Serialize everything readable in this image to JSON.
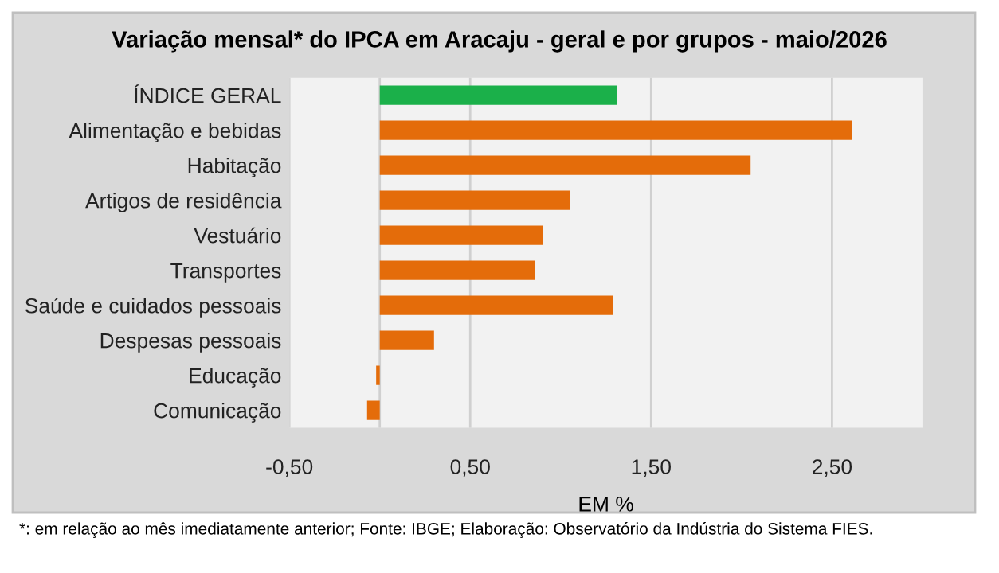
{
  "chart_data": {
    "type": "bar",
    "orientation": "horizontal",
    "title": "Variação mensal* do IPCA em Aracaju - geral e por grupos - maio/2026",
    "xlabel": "EM %",
    "categories": [
      "ÍNDICE GERAL",
      "Alimentação e bebidas",
      "Habitação",
      "Artigos de residência",
      "Vestuário",
      "Transportes",
      "Saúde e cuidados pessoais",
      "Despesas pessoais",
      "Educação",
      "Comunicação"
    ],
    "values": [
      1.31,
      2.61,
      2.05,
      1.05,
      0.9,
      0.86,
      1.29,
      0.3,
      -0.02,
      -0.07
    ],
    "colors": [
      "#1bb04a",
      "#e46c0a",
      "#e46c0a",
      "#e46c0a",
      "#e46c0a",
      "#e46c0a",
      "#e46c0a",
      "#e46c0a",
      "#e46c0a",
      "#e46c0a"
    ],
    "xlim": [
      -0.5,
      3.0
    ],
    "xticks": [
      {
        "value": -0.5,
        "label": "-0,50"
      },
      {
        "value": 0.5,
        "label": "0,50"
      },
      {
        "value": 1.5,
        "label": "1,50"
      },
      {
        "value": 2.5,
        "label": "2,50"
      }
    ],
    "grid": "x",
    "legend": false,
    "annotations": [
      "*: em relação ao mês imediatamente anterior; Fonte: IBGE; Elaboração: Observatório da Indústria do Sistema FIES."
    ]
  }
}
